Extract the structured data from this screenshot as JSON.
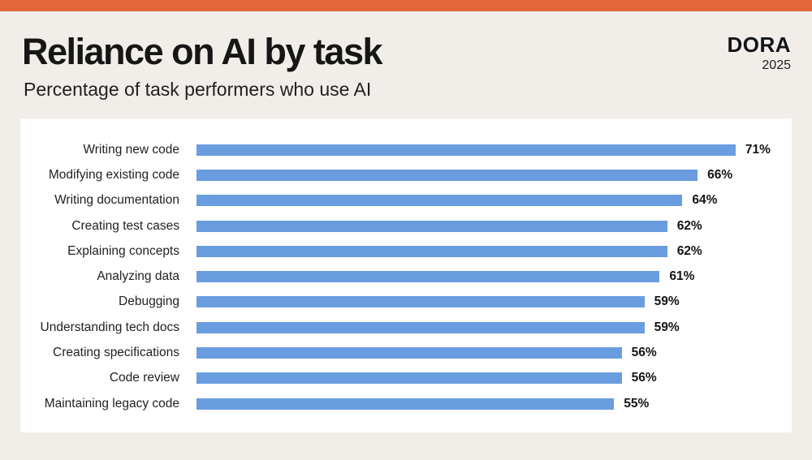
{
  "page": {
    "background_color": "#F1EEE9",
    "accent_bar_color": "#E2683C",
    "panel_color": "#FFFFFF"
  },
  "header": {
    "title": "Reliance on AI by task",
    "subtitle": "Percentage of task performers who use AI",
    "brand": "DORA",
    "year": "2025"
  },
  "chart_data": {
    "type": "bar",
    "orientation": "horizontal",
    "title": "Reliance on AI by task",
    "subtitle": "Percentage of task performers who use AI",
    "categories": [
      "Writing new code",
      "Modifying existing code",
      "Writing documentation",
      "Creating test cases",
      "Explaining concepts",
      "Analyzing data",
      "Debugging",
      "Understanding tech docs",
      "Creating specifications",
      "Code review",
      "Maintaining legacy code"
    ],
    "values": [
      71,
      66,
      64,
      62,
      62,
      61,
      59,
      59,
      56,
      56,
      55
    ],
    "value_suffix": "%",
    "bar_color": "#6A9CE0",
    "xlim": [
      0,
      100
    ],
    "xlabel": "",
    "ylabel": "",
    "grid": false,
    "legend": false,
    "data_labels": true
  }
}
